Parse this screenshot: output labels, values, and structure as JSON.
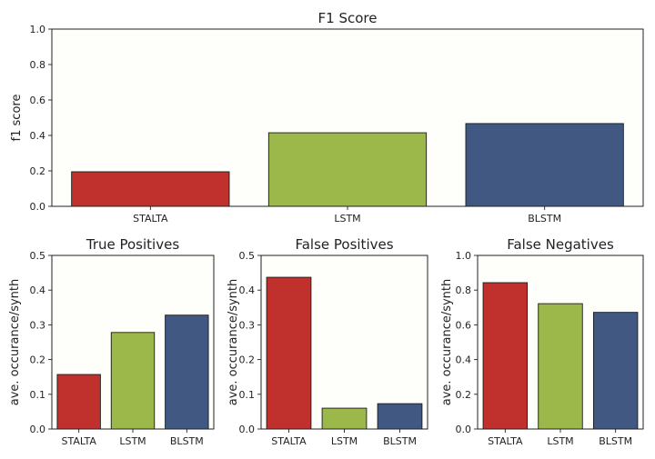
{
  "chart_data": [
    {
      "type": "bar",
      "title": "F1 Score",
      "xlabel": "",
      "ylabel": "f1 score",
      "categories": [
        "STALTA",
        "LSTM",
        "BLSTM"
      ],
      "values": [
        0.195,
        0.415,
        0.467
      ],
      "ylim": [
        0,
        1.0
      ],
      "yticks": [
        "0.0",
        "0.2",
        "0.4",
        "0.6",
        "0.8",
        "1.0"
      ],
      "colors": [
        "#c0312e",
        "#9cb84b",
        "#405882"
      ],
      "grid": false
    },
    {
      "type": "bar",
      "title": "True Positives",
      "xlabel": "",
      "ylabel": "ave. occurance/synth",
      "categories": [
        "STALTA",
        "LSTM",
        "BLSTM"
      ],
      "values": [
        0.157,
        0.278,
        0.328
      ],
      "ylim": [
        0,
        0.5
      ],
      "yticks": [
        "0.0",
        "0.1",
        "0.2",
        "0.3",
        "0.4",
        "0.5"
      ],
      "colors": [
        "#c0312e",
        "#9cb84b",
        "#405882"
      ],
      "grid": false
    },
    {
      "type": "bar",
      "title": "False Positives",
      "xlabel": "",
      "ylabel": "ave. occurance/synth",
      "categories": [
        "STALTA",
        "LSTM",
        "BLSTM"
      ],
      "values": [
        0.437,
        0.06,
        0.073
      ],
      "ylim": [
        0,
        0.5
      ],
      "yticks": [
        "0.0",
        "0.1",
        "0.2",
        "0.3",
        "0.4",
        "0.5"
      ],
      "colors": [
        "#c0312e",
        "#9cb84b",
        "#405882"
      ],
      "grid": false
    },
    {
      "type": "bar",
      "title": "False Negatives",
      "xlabel": "",
      "ylabel": "ave. occurance/synth",
      "categories": [
        "STALTA",
        "LSTM",
        "BLSTM"
      ],
      "values": [
        0.843,
        0.722,
        0.672
      ],
      "ylim": [
        0,
        1.0
      ],
      "yticks": [
        "0.0",
        "0.2",
        "0.4",
        "0.6",
        "0.8",
        "1.0"
      ],
      "colors": [
        "#c0312e",
        "#9cb84b",
        "#405882"
      ],
      "grid": false
    }
  ]
}
